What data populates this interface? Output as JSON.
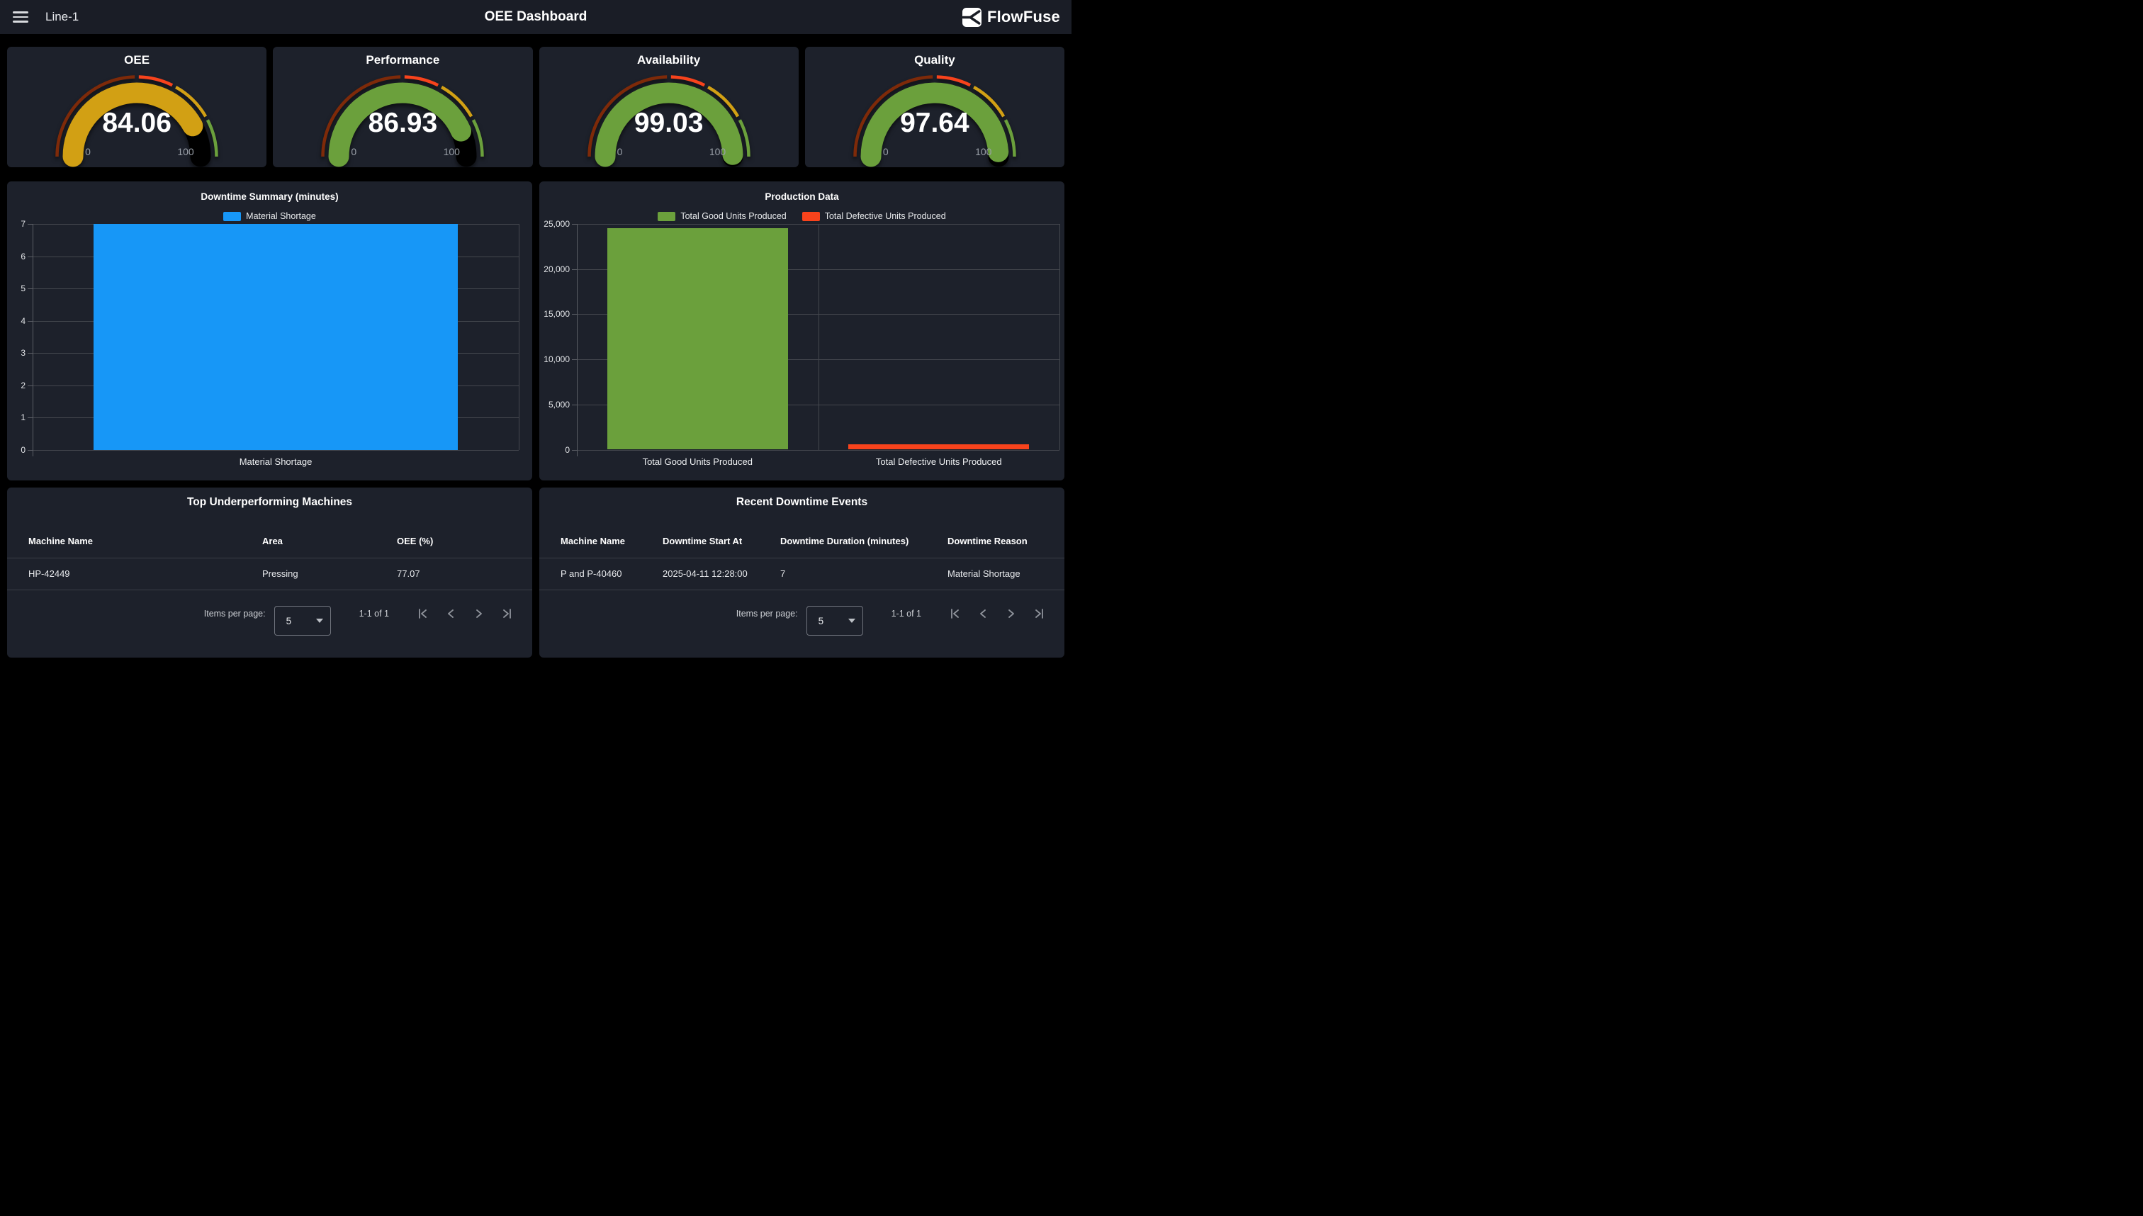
{
  "topbar": {
    "left_label": "Line-1",
    "title": "OEE Dashboard",
    "brand": "FlowFuse"
  },
  "colors": {
    "topbar_bg": "#1a1d26",
    "card_bg": "#1d212b",
    "page_bg": "#000000",
    "blue": "#1797f7",
    "green": "#6ba03c",
    "red": "#f8431c",
    "yellow": "#d2a014",
    "dark_red": "#7e2a09",
    "grid": "#44474e",
    "axis": "#5b5e65"
  },
  "gauges": [
    {
      "title": "OEE",
      "value": "84.06",
      "min": "0",
      "max": "100",
      "value_color": "#d2a014"
    },
    {
      "title": "Performance",
      "value": "86.93",
      "min": "0",
      "max": "100",
      "value_color": "#6ba03c"
    },
    {
      "title": "Availability",
      "value": "99.03",
      "min": "0",
      "max": "100",
      "value_color": "#6ba03c"
    },
    {
      "title": "Quality",
      "value": "97.64",
      "min": "0",
      "max": "100",
      "value_color": "#6ba03c"
    }
  ],
  "gauge_style": {
    "sectors": [
      {
        "from": 0,
        "to": 0.5,
        "color": "#7e2a09"
      },
      {
        "from": 0.5,
        "to": 0.655,
        "color": "#f8431c"
      },
      {
        "from": 0.655,
        "to": 0.84,
        "color": "#d2a014"
      },
      {
        "from": 0.84,
        "to": 1,
        "color": "#6ba03c"
      }
    ],
    "remainder_color": "#000000"
  },
  "chart_data": [
    {
      "type": "bar",
      "title": "Downtime Summary (minutes)",
      "legend": [
        {
          "label": "Material Shortage",
          "color": "#1797f7"
        }
      ],
      "legend_position": "top",
      "grid": true,
      "ylim": [
        0,
        7
      ],
      "ytick_labels": [
        "0",
        "1",
        "2",
        "3",
        "4",
        "5",
        "6",
        "7"
      ],
      "categories": [
        "Material Shortage"
      ],
      "bars": [
        {
          "category": "Material Shortage",
          "value": 7,
          "color": "#1797f7"
        }
      ]
    },
    {
      "type": "bar",
      "title": "Production Data",
      "legend": [
        {
          "label": "Total Good Units Produced",
          "color": "#6ba03c"
        },
        {
          "label": "Total Defective Units Produced",
          "color": "#f8431c"
        }
      ],
      "legend_position": "top",
      "grid": true,
      "ylim": [
        0,
        25000
      ],
      "ytick_labels": [
        "0",
        "5,000",
        "10,000",
        "15,000",
        "20,000",
        "25,000"
      ],
      "categories": [
        "Total Good Units Produced",
        "Total Defective Units Produced"
      ],
      "bars": [
        {
          "category": "Total Good Units Produced",
          "value": 24500,
          "color": "#6ba03c"
        },
        {
          "category": "Total Defective Units Produced",
          "value": 600,
          "color": "#f8431c"
        }
      ]
    }
  ],
  "tables": [
    {
      "title": "Top Underperforming Machines",
      "headers": [
        "Machine Name",
        "Area",
        "OEE (%)"
      ],
      "rows": [
        [
          "HP-42449",
          "Pressing",
          "77.07"
        ]
      ]
    },
    {
      "title": "Recent Downtime Events",
      "headers": [
        "Machine Name",
        "Downtime Start At",
        "Downtime Duration (minutes)",
        "Downtime Reason"
      ],
      "rows": [
        [
          "P and P-40460",
          "2025-04-11 12:28:00",
          "7",
          "Material Shortage"
        ]
      ]
    }
  ],
  "table_footer": {
    "items_per_page_label": "Items per page:",
    "items_per_page_value": "5",
    "range": "1-1 of 1"
  }
}
